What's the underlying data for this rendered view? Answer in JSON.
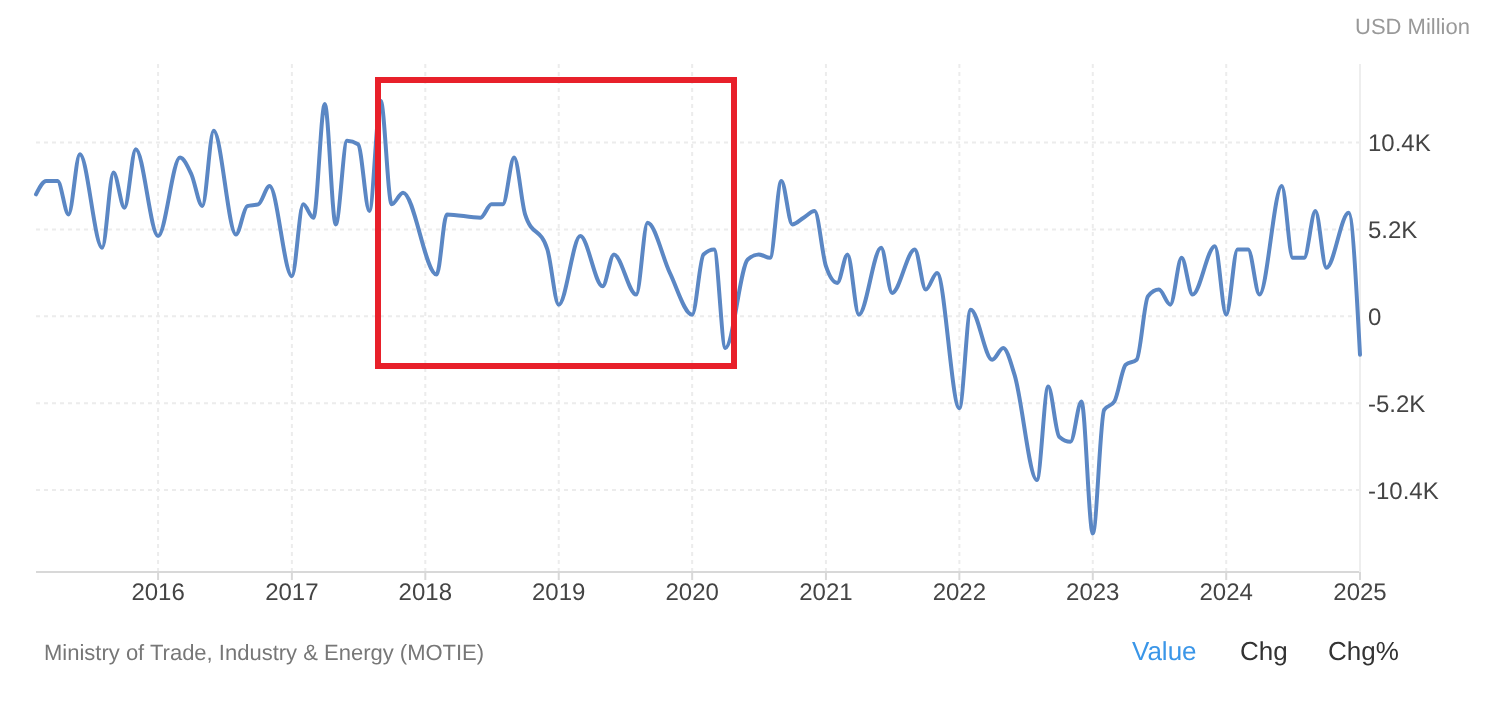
{
  "chart_data": {
    "type": "line",
    "ylabel": "USD Million",
    "annotations": [
      "Ministry of Trade, Industry & Energy (MOTIE)",
      "Value",
      "Chg",
      "Chg%"
    ],
    "x": [
      "2015-02",
      "2015-03",
      "2015-04",
      "2015-05",
      "2015-06",
      "2015-08",
      "2015-09",
      "2015-10",
      "2015-11",
      "2016-01",
      "2016-03",
      "2016-04",
      "2016-05",
      "2016-06",
      "2016-08",
      "2016-09",
      "2016-10",
      "2016-11",
      "2017-01",
      "2017-02",
      "2017-03",
      "2017-04",
      "2017-05",
      "2017-06",
      "2017-07",
      "2017-08",
      "2017-09",
      "2017-10",
      "2017-11",
      "2018-02",
      "2018-03",
      "2018-06",
      "2018-07",
      "2018-08",
      "2018-09",
      "2018-10",
      "2018-12",
      "2019-01",
      "2019-03",
      "2019-05",
      "2019-06",
      "2019-08",
      "2019-09",
      "2019-11",
      "2020-01",
      "2020-02",
      "2020-03",
      "2020-04",
      "2020-06",
      "2020-07",
      "2020-08",
      "2020-09",
      "2020-10",
      "2020-11",
      "2020-12",
      "2021-01",
      "2021-02",
      "2021-03",
      "2021-04",
      "2021-06",
      "2021-07",
      "2021-09",
      "2021-10",
      "2021-11",
      "2022-01",
      "2022-02",
      "2022-04",
      "2022-05",
      "2022-06",
      "2022-08",
      "2022-09",
      "2022-10",
      "2022-11",
      "2022-12",
      "2023-01",
      "2023-02",
      "2023-03",
      "2023-04",
      "2023-05",
      "2023-06",
      "2023-07",
      "2023-08",
      "2023-09",
      "2023-10",
      "2023-12",
      "2024-01",
      "2024-02",
      "2024-03",
      "2024-04",
      "2024-06",
      "2024-07",
      "2024-08",
      "2024-09",
      "2024-10",
      "2024-12",
      "2025-01"
    ],
    "series": [
      {
        "color": "#5b87c4",
        "values": [
          7300,
          8100,
          8100,
          6100,
          9700,
          4100,
          8600,
          6500,
          10000,
          4800,
          9500,
          8500,
          6600,
          11100,
          4900,
          6600,
          6700,
          7800,
          2400,
          6700,
          5900,
          12700,
          5500,
          10500,
          10300,
          6300,
          12900,
          6700,
          7400,
          2500,
          6100,
          5900,
          6700,
          6700,
          9500,
          6100,
          4000,
          700,
          4800,
          1800,
          3700,
          1300,
          5600,
          2600,
          100,
          3700,
          4000,
          -1900,
          3400,
          3700,
          3500,
          8100,
          5500,
          5900,
          6300,
          3000,
          2000,
          3700,
          100,
          4100,
          1400,
          4000,
          1600,
          2600,
          -5500,
          400,
          -2600,
          -1900,
          -3500,
          -9800,
          -4200,
          -7200,
          -7500,
          -5100,
          -13000,
          -5600,
          -5100,
          -2900,
          -2600,
          1200,
          1600,
          700,
          3500,
          1300,
          4200,
          100,
          4000,
          4000,
          1300,
          7800,
          3500,
          3500,
          6300,
          2900,
          6200,
          -2300
        ]
      }
    ],
    "xlim": [
      "2015-02",
      "2025-01"
    ],
    "xticks": [
      {
        "value": "2016",
        "label": "2016"
      },
      {
        "value": "2017",
        "label": "2017"
      },
      {
        "value": "2018",
        "label": "2018"
      },
      {
        "value": "2019",
        "label": "2019"
      },
      {
        "value": "2020",
        "label": "2020"
      },
      {
        "value": "2021",
        "label": "2021"
      },
      {
        "value": "2022",
        "label": "2022"
      },
      {
        "value": "2023",
        "label": "2023"
      },
      {
        "value": "2024",
        "label": "2024"
      },
      {
        "value": "2025",
        "label": "2025"
      }
    ],
    "ylim": [
      -15300,
      15100
    ],
    "yticks": [
      {
        "value": 10400,
        "label": "10.4K"
      },
      {
        "value": 5200,
        "label": "5.2K"
      },
      {
        "value": 0,
        "label": "0"
      },
      {
        "value": -5200,
        "label": "-5.2K"
      },
      {
        "value": -10400,
        "label": "-10.4K"
      }
    ],
    "grid": true,
    "marker": "none",
    "line_style": "solid"
  }
}
